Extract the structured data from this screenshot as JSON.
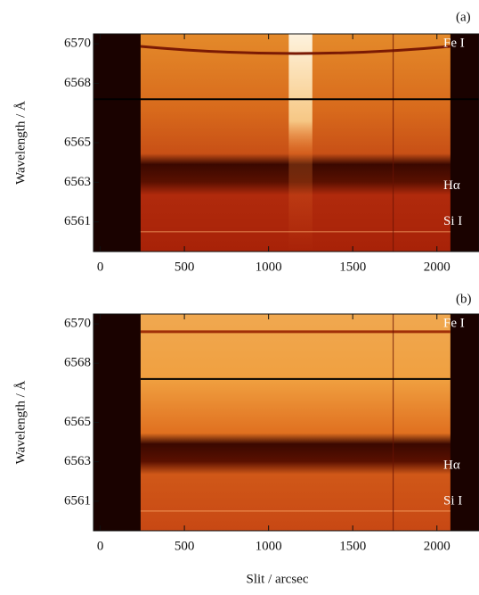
{
  "chart_data": [
    {
      "type": "image",
      "panel_label": "(a)",
      "ylabel": "Wavelength / Å",
      "xlim": [
        -40,
        2250
      ],
      "xticks": [
        0,
        500,
        1000,
        1500,
        2000
      ],
      "ylim": [
        6559.5,
        6570.5
      ],
      "yticks": [
        6570,
        6568,
        6565,
        6563,
        6561
      ],
      "annotations": [
        "Fe I",
        "Hα",
        "Si I"
      ]
    },
    {
      "type": "image",
      "panel_label": "(b)",
      "ylabel": "Wavelength / Å",
      "xlabel": "Slit / arcsec",
      "xlim": [
        -40,
        2250
      ],
      "xticks": [
        0,
        500,
        1000,
        1500,
        2000
      ],
      "ylim": [
        6559.5,
        6570.5
      ],
      "yticks": [
        6570,
        6568,
        6565,
        6563,
        6561
      ],
      "annotations": [
        "Fe I",
        "Hα",
        "Si I"
      ]
    }
  ]
}
